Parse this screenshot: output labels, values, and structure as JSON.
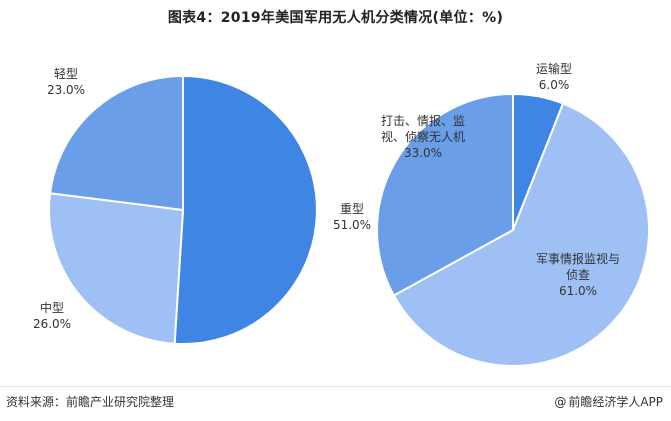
{
  "title": "图表4：2019年美国军用无人机分类情况(单位：%)",
  "source": "资料来源：前瞻产业研究院整理",
  "brand": "前瞻经济学人APP",
  "watermark": "前瞻产业研究院",
  "colors": {
    "dark_blue": "#3f86e4",
    "mid_blue": "#6b9ee8",
    "light_blue": "#9ec0f4",
    "stroke": "#ffffff"
  },
  "chart_data": [
    {
      "type": "pie",
      "title": "",
      "slices": [
        {
          "label": "重型",
          "value": 51.0,
          "value_label": "51.0%",
          "color": "#3f86e4"
        },
        {
          "label": "中型",
          "value": 26.0,
          "value_label": "26.0%",
          "color": "#9ec0f4"
        },
        {
          "label": "轻型",
          "value": 23.0,
          "value_label": "23.0%",
          "color": "#6b9ee8"
        }
      ]
    },
    {
      "type": "pie",
      "title": "",
      "slices": [
        {
          "label": "运输型",
          "value": 6.0,
          "value_label": "6.0%",
          "color": "#3f86e4"
        },
        {
          "label": "军事情报监视与侦查",
          "label_lines": [
            "军事情报监视与",
            "侦查"
          ],
          "value": 61.0,
          "value_label": "61.0%",
          "color": "#9ec0f4"
        },
        {
          "label": "打击、情报、监视、侦察无人机",
          "label_lines": [
            "打击、情报、监",
            "视、侦察无人机"
          ],
          "value": 33.0,
          "value_label": "33.0%",
          "color": "#6b9ee8"
        }
      ]
    }
  ]
}
